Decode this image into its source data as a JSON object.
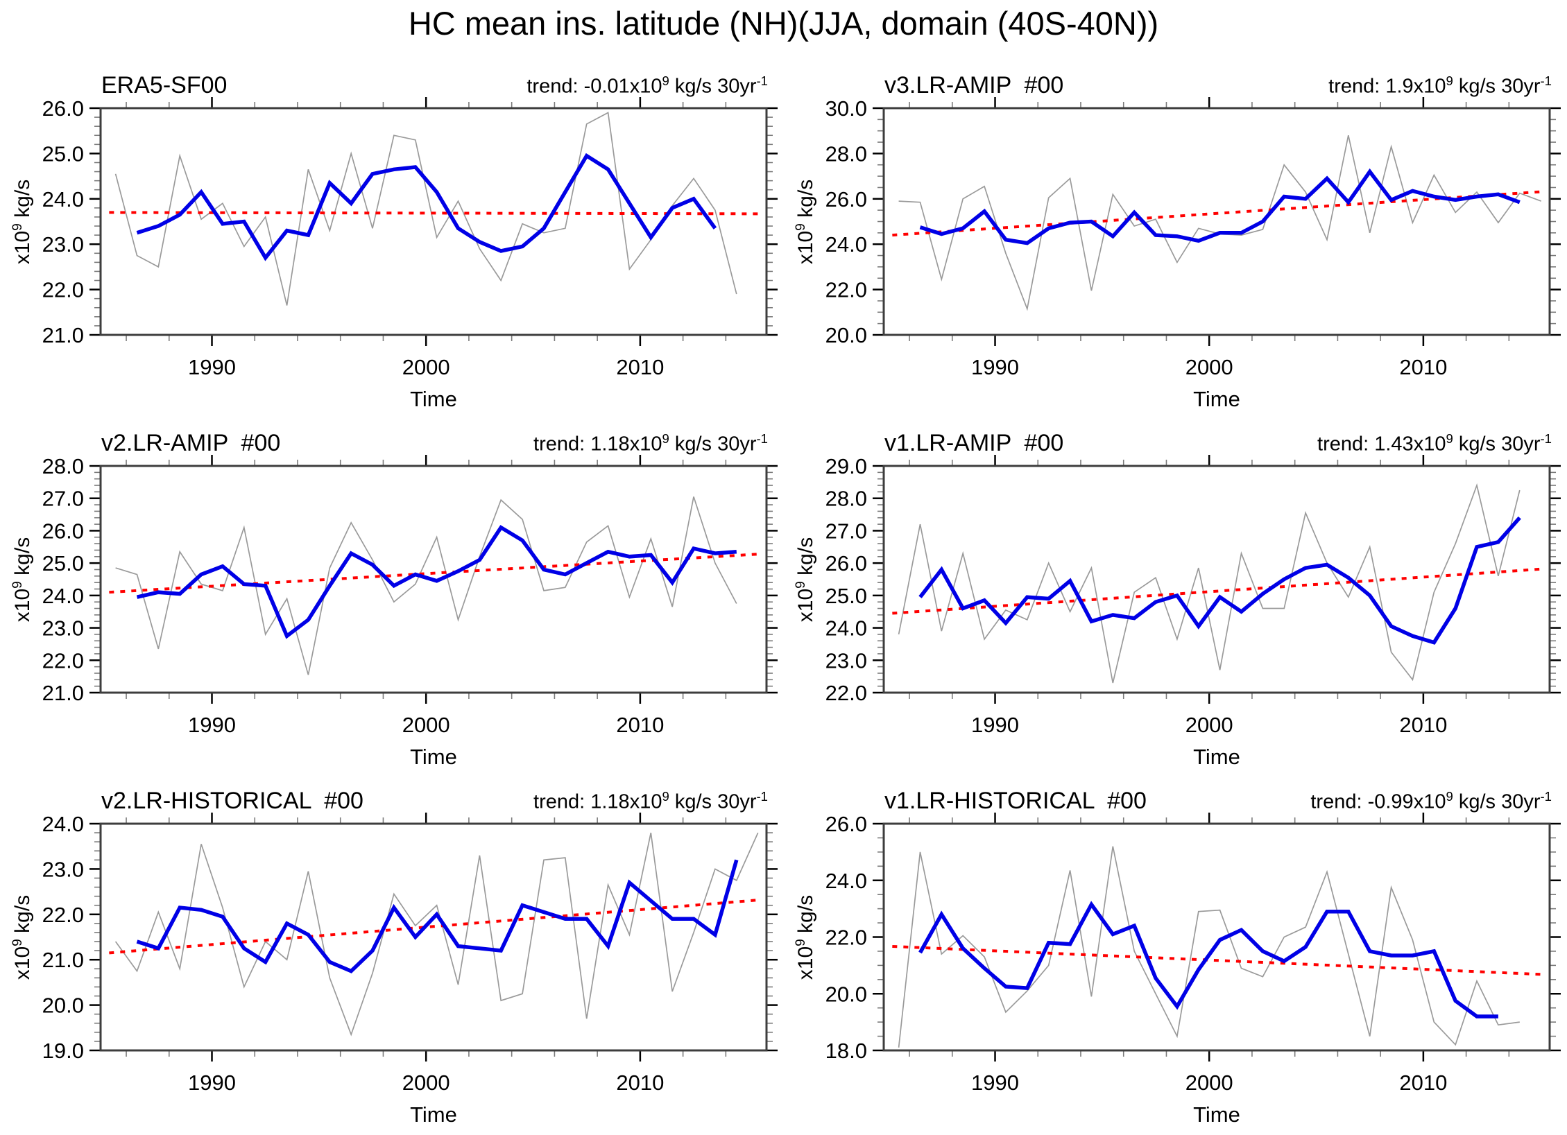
{
  "figure": {
    "title": "HC mean ins. latitude (NH)(JJA, domain (40S-40N))"
  },
  "colors": {
    "raw": "#9a9a9a",
    "smoothed": "#0000e6",
    "trend": "#ff0000",
    "frame": "#3d3d3d",
    "tick_major": "#000000",
    "tick_minor": "#7a7a7a"
  },
  "axis": {
    "xlabel": "Time",
    "ylabel_pre": "x10",
    "ylabel_exp": "9",
    "ylabel_post": " kg/s",
    "xlim": [
      1984.8,
      2015.9
    ],
    "xticks_major": [
      1990,
      2000,
      2010
    ],
    "xminor_start": 1986,
    "xminor_end": 2014,
    "xminor_step": 2
  },
  "chart_data": [
    {
      "type": "line",
      "title": "ERA5-SF00",
      "trend": {
        "prefix": "trend: -0.01x10",
        "exp": "9",
        "mid": " kg/s 30yr",
        "exp2": "-1",
        "value_per_30yr": -0.01
      },
      "ylim": [
        21,
        26
      ],
      "ytick_step": 1,
      "yminor_step": 0.2,
      "series": {
        "raw": {
          "start_year": 1985,
          "values": [
            24.55,
            22.75,
            22.5,
            24.95,
            23.55,
            23.9,
            22.95,
            23.6,
            21.65,
            24.65,
            23.3,
            25.0,
            23.35,
            25.4,
            25.3,
            23.15,
            23.95,
            22.9,
            22.2,
            23.45,
            23.25,
            23.35,
            25.65,
            25.9,
            22.45,
            23.1,
            23.85,
            24.45,
            23.75,
            21.9
          ]
        },
        "smoothed": {
          "start_year": 1986,
          "values": [
            23.25,
            23.4,
            23.65,
            24.15,
            23.45,
            23.5,
            22.7,
            23.3,
            23.2,
            24.35,
            23.9,
            24.55,
            24.65,
            24.7,
            24.15,
            23.35,
            23.05,
            22.85,
            22.95,
            23.35,
            24.15,
            24.95,
            24.65,
            23.9,
            23.15,
            23.8,
            24.0,
            23.35
          ]
        },
        "trendline": {
          "x": [
            1985.2,
            2015.6
          ],
          "y": [
            23.7,
            23.67
          ]
        }
      }
    },
    {
      "type": "line",
      "title": "v3.LR-AMIP  #00",
      "trend": {
        "prefix": "trend: 1.9x10",
        "exp": "9",
        "mid": " kg/s 30yr",
        "exp2": "-1",
        "value_per_30yr": 1.9
      },
      "ylim": [
        20,
        30
      ],
      "ytick_step": 2,
      "yminor_step": 0.5,
      "series": {
        "raw": {
          "start_year": 1985,
          "values": [
            25.9,
            25.85,
            22.45,
            26.0,
            26.55,
            23.6,
            21.15,
            26.05,
            26.9,
            21.95,
            26.2,
            24.8,
            25.1,
            23.2,
            24.7,
            24.45,
            24.4,
            24.65,
            27.5,
            26.3,
            24.2,
            28.8,
            24.5,
            28.3,
            24.95,
            27.05,
            25.4,
            26.3,
            24.95,
            26.25,
            25.9
          ]
        },
        "smoothed": {
          "start_year": 1986,
          "values": [
            24.75,
            24.45,
            24.7,
            25.45,
            24.2,
            24.05,
            24.7,
            24.95,
            25.0,
            24.35,
            25.4,
            24.4,
            24.35,
            24.15,
            24.5,
            24.5,
            25.0,
            26.1,
            26.0,
            26.9,
            25.85,
            27.2,
            25.95,
            26.35,
            26.1,
            25.95,
            26.1,
            26.2,
            25.85
          ]
        },
        "trendline": {
          "x": [
            1985.2,
            2015.6
          ],
          "y": [
            24.4,
            26.32
          ]
        }
      }
    },
    {
      "type": "line",
      "title": "v2.LR-AMIP  #00",
      "trend": {
        "prefix": "trend: 1.18x10",
        "exp": "9",
        "mid": " kg/s 30yr",
        "exp2": "-1",
        "value_per_30yr": 1.18
      },
      "ylim": [
        21,
        28
      ],
      "ytick_step": 1,
      "yminor_step": 0.2,
      "series": {
        "raw": {
          "start_year": 1985,
          "values": [
            24.85,
            24.65,
            22.35,
            25.35,
            24.35,
            24.15,
            26.1,
            22.8,
            23.9,
            21.55,
            24.85,
            26.25,
            25.1,
            23.8,
            24.35,
            25.8,
            23.25,
            25.2,
            26.95,
            26.35,
            24.15,
            24.25,
            25.65,
            26.15,
            23.95,
            25.75,
            23.65,
            27.05,
            25.0,
            23.75
          ]
        },
        "smoothed": {
          "start_year": 1986,
          "values": [
            23.95,
            24.1,
            24.05,
            24.65,
            24.9,
            24.35,
            24.3,
            22.75,
            23.25,
            24.3,
            25.3,
            24.95,
            24.3,
            24.65,
            24.45,
            24.75,
            25.1,
            26.1,
            25.7,
            24.8,
            24.65,
            25.0,
            25.35,
            25.2,
            25.25,
            24.4,
            25.45,
            25.3,
            25.35
          ]
        },
        "trendline": {
          "x": [
            1985.2,
            2015.6
          ],
          "y": [
            24.1,
            25.28
          ]
        }
      }
    },
    {
      "type": "line",
      "title": "v1.LR-AMIP  #00",
      "trend": {
        "prefix": "trend: 1.43x10",
        "exp": "9",
        "mid": " kg/s 30yr",
        "exp2": "-1",
        "value_per_30yr": 1.43
      },
      "ylim": [
        22,
        29
      ],
      "ytick_step": 1,
      "yminor_step": 0.2,
      "series": {
        "raw": {
          "start_year": 1985,
          "values": [
            23.8,
            27.2,
            23.9,
            26.3,
            23.65,
            24.55,
            24.25,
            26.0,
            24.5,
            25.85,
            22.3,
            25.1,
            25.55,
            23.65,
            25.85,
            22.7,
            26.3,
            24.6,
            24.6,
            27.55,
            26.0,
            24.95,
            26.5,
            23.25,
            22.4,
            25.1,
            26.6,
            28.4,
            25.6,
            28.25
          ]
        },
        "smoothed": {
          "start_year": 1986,
          "values": [
            24.95,
            25.8,
            24.6,
            24.85,
            24.15,
            24.95,
            24.9,
            25.45,
            24.2,
            24.4,
            24.3,
            24.8,
            25.0,
            24.05,
            24.95,
            24.5,
            25.05,
            25.5,
            25.85,
            25.95,
            25.55,
            25.0,
            24.05,
            23.75,
            23.55,
            24.6,
            26.5,
            26.65,
            27.4
          ]
        },
        "trendline": {
          "x": [
            1985.2,
            2015.6
          ],
          "y": [
            24.45,
            25.82
          ]
        }
      }
    },
    {
      "type": "line",
      "title": "v2.LR-HISTORICAL  #00",
      "trend": {
        "prefix": "trend: 1.18x10",
        "exp": "9",
        "mid": " kg/s 30yr",
        "exp2": "-1",
        "value_per_30yr": 1.18
      },
      "ylim": [
        19,
        24
      ],
      "ytick_step": 1,
      "yminor_step": 0.2,
      "series": {
        "raw": {
          "start_year": 1985,
          "values": [
            21.4,
            20.75,
            22.05,
            20.8,
            23.55,
            22.15,
            20.4,
            21.4,
            21.0,
            22.95,
            20.6,
            19.35,
            20.7,
            22.45,
            21.75,
            22.2,
            20.45,
            23.3,
            20.1,
            20.25,
            23.2,
            23.25,
            19.7,
            22.65,
            21.55,
            23.8,
            20.3,
            21.6,
            23.0,
            22.75,
            23.8
          ]
        },
        "smoothed": {
          "start_year": 1986,
          "values": [
            21.4,
            21.25,
            22.15,
            22.1,
            21.95,
            21.25,
            20.95,
            21.8,
            21.55,
            20.95,
            20.75,
            21.2,
            22.15,
            21.5,
            22.0,
            21.3,
            21.25,
            21.2,
            22.2,
            22.05,
            21.9,
            21.9,
            21.3,
            22.7,
            22.3,
            21.9,
            21.9,
            21.55,
            23.2
          ]
        },
        "trendline": {
          "x": [
            1985.2,
            2015.6
          ],
          "y": [
            21.15,
            22.32
          ]
        }
      }
    },
    {
      "type": "line",
      "title": "v1.LR-HISTORICAL  #00",
      "trend": {
        "prefix": "trend: -0.99x10",
        "exp": "9",
        "mid": " kg/s 30yr",
        "exp2": "-1",
        "value_per_30yr": -0.99
      },
      "ylim": [
        18,
        26
      ],
      "ytick_step": 2,
      "yminor_step": 0.5,
      "series": {
        "raw": {
          "start_year": 1985,
          "values": [
            18.1,
            25.0,
            21.4,
            22.05,
            21.3,
            19.35,
            20.1,
            21.0,
            24.35,
            19.9,
            25.2,
            21.5,
            20.0,
            18.5,
            22.9,
            22.95,
            20.9,
            20.6,
            22.0,
            22.35,
            24.3,
            21.4,
            18.5,
            23.75,
            21.9,
            19.0,
            18.2,
            20.45,
            18.9,
            19.0
          ]
        },
        "smoothed": {
          "start_year": 1986,
          "values": [
            21.45,
            22.8,
            21.6,
            20.9,
            20.25,
            20.2,
            21.8,
            21.75,
            23.15,
            22.1,
            22.4,
            20.55,
            19.55,
            20.85,
            21.9,
            22.25,
            21.5,
            21.15,
            21.65,
            22.9,
            22.9,
            21.5,
            21.35,
            21.35,
            21.5,
            19.75,
            19.2,
            19.2
          ]
        },
        "trendline": {
          "x": [
            1985.2,
            2015.6
          ],
          "y": [
            21.67,
            20.68
          ]
        }
      }
    }
  ]
}
